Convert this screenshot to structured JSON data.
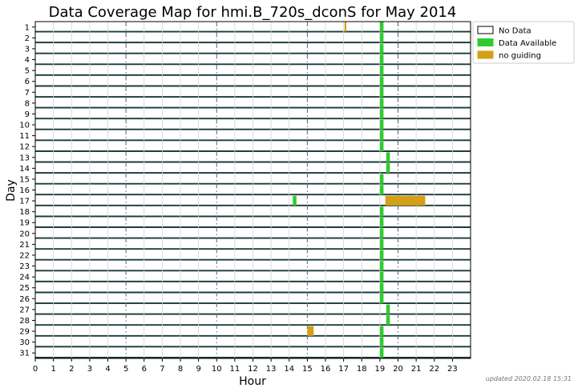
{
  "chart_data": {
    "type": "bar",
    "title": "Data Coverage Map for hmi.B_720s_dconS for May 2014",
    "xlabel": "Hour",
    "ylabel": "Day",
    "xlim": [
      0,
      24
    ],
    "x_ticks": [
      "0",
      "1",
      "2",
      "3",
      "4",
      "5",
      "6",
      "7",
      "8",
      "9",
      "10",
      "11",
      "12",
      "13",
      "14",
      "15",
      "16",
      "17",
      "18",
      "19",
      "20",
      "21",
      "22",
      "23"
    ],
    "days": [
      "1",
      "2",
      "3",
      "4",
      "5",
      "6",
      "7",
      "8",
      "9",
      "10",
      "11",
      "12",
      "13",
      "14",
      "15",
      "16",
      "17",
      "18",
      "19",
      "20",
      "21",
      "22",
      "23",
      "24",
      "25",
      "26",
      "27",
      "28",
      "29",
      "30",
      "31"
    ],
    "major_hour_lines": [
      5,
      10,
      15,
      20
    ],
    "legend_position": "outside-top-right",
    "legend": [
      {
        "label": "No Data",
        "color": "#ffffff"
      },
      {
        "label": "Data Available",
        "color": "#2ecc2e"
      },
      {
        "label": "no guiding",
        "color": "#d4a017"
      }
    ],
    "series": [
      {
        "name": "Data Available",
        "color": "#2ecc2e",
        "segments": [
          {
            "day": 1,
            "start": 19.0,
            "end": 19.2
          },
          {
            "day": 2,
            "start": 19.0,
            "end": 19.2
          },
          {
            "day": 3,
            "start": 19.0,
            "end": 19.2
          },
          {
            "day": 4,
            "start": 19.0,
            "end": 19.2
          },
          {
            "day": 5,
            "start": 19.0,
            "end": 19.2
          },
          {
            "day": 6,
            "start": 19.0,
            "end": 19.2
          },
          {
            "day": 7,
            "start": 19.0,
            "end": 19.2
          },
          {
            "day": 8,
            "start": 19.0,
            "end": 19.2
          },
          {
            "day": 9,
            "start": 19.0,
            "end": 19.2
          },
          {
            "day": 10,
            "start": 19.0,
            "end": 19.2
          },
          {
            "day": 11,
            "start": 19.0,
            "end": 19.2
          },
          {
            "day": 12,
            "start": 19.0,
            "end": 19.2
          },
          {
            "day": 13,
            "start": 19.35,
            "end": 19.55
          },
          {
            "day": 14,
            "start": 19.35,
            "end": 19.55
          },
          {
            "day": 15,
            "start": 19.0,
            "end": 19.2
          },
          {
            "day": 16,
            "start": 19.0,
            "end": 19.2
          },
          {
            "day": 17,
            "start": 14.2,
            "end": 14.4
          },
          {
            "day": 18,
            "start": 19.0,
            "end": 19.2
          },
          {
            "day": 19,
            "start": 19.0,
            "end": 19.2
          },
          {
            "day": 20,
            "start": 19.0,
            "end": 19.2
          },
          {
            "day": 21,
            "start": 19.0,
            "end": 19.2
          },
          {
            "day": 22,
            "start": 19.0,
            "end": 19.2
          },
          {
            "day": 23,
            "start": 19.0,
            "end": 19.2
          },
          {
            "day": 24,
            "start": 19.0,
            "end": 19.2
          },
          {
            "day": 25,
            "start": 19.0,
            "end": 19.2
          },
          {
            "day": 26,
            "start": 19.0,
            "end": 19.2
          },
          {
            "day": 27,
            "start": 19.35,
            "end": 19.55
          },
          {
            "day": 28,
            "start": 19.35,
            "end": 19.55
          },
          {
            "day": 29,
            "start": 19.0,
            "end": 19.2
          },
          {
            "day": 30,
            "start": 19.0,
            "end": 19.2
          },
          {
            "day": 31,
            "start": 19.0,
            "end": 19.2
          }
        ]
      },
      {
        "name": "no guiding",
        "color": "#d4a017",
        "segments": [
          {
            "day": 1,
            "start": 17.05,
            "end": 17.15
          },
          {
            "day": 17,
            "start": 19.3,
            "end": 21.5
          },
          {
            "day": 29,
            "start": 15.0,
            "end": 15.35
          }
        ]
      }
    ]
  },
  "footer": {
    "updated": "updated 2020.02.18 15:31"
  }
}
